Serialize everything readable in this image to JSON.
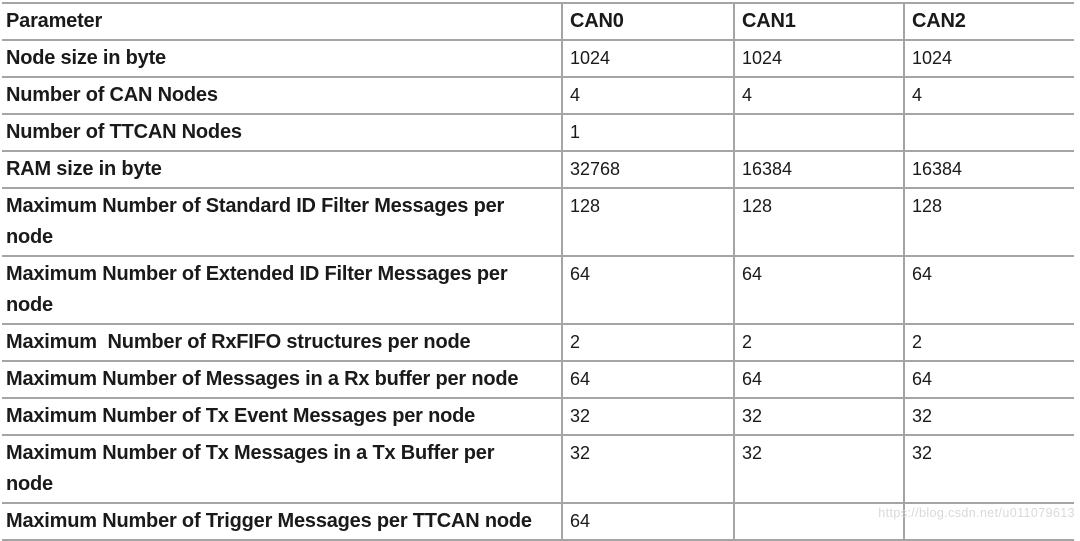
{
  "colors": {
    "grid_line": "#a5a5a5",
    "text": "#1a1a1a",
    "watermark_text": "#d9d9d9",
    "background": "#ffffff"
  },
  "table": {
    "columns": [
      "Parameter",
      "CAN0",
      "CAN1",
      "CAN2"
    ],
    "rows": [
      {
        "label": "Node size in byte",
        "values": [
          "1024",
          "1024",
          "1024"
        ]
      },
      {
        "label": "Number of CAN Nodes",
        "values": [
          "4",
          "4",
          "4"
        ]
      },
      {
        "label": "Number of TTCAN Nodes",
        "values": [
          "1",
          "",
          ""
        ]
      },
      {
        "label": "RAM size in byte",
        "values": [
          "32768",
          "16384",
          "16384"
        ]
      },
      {
        "label": "Maximum Number of Standard ID Filter Messages per\nnode",
        "values": [
          "128",
          "128",
          "128"
        ]
      },
      {
        "label": "Maximum Number of Extended ID Filter Messages per\nnode",
        "values": [
          "64",
          "64",
          "64"
        ]
      },
      {
        "label": "Maximum  Number of RxFIFO structures per node",
        "values": [
          "2",
          "2",
          "2"
        ]
      },
      {
        "label": "Maximum Number of Messages in a Rx buffer per node",
        "values": [
          "64",
          "64",
          "64"
        ]
      },
      {
        "label": "Maximum Number of Tx Event Messages per node",
        "values": [
          "32",
          "32",
          "32"
        ]
      },
      {
        "label": "Maximum Number of Tx Messages in a Tx Buffer per\nnode",
        "values": [
          "32",
          "32",
          "32"
        ]
      },
      {
        "label": "Maximum Number of Trigger Messages per TTCAN node",
        "values": [
          "64",
          "",
          ""
        ]
      }
    ]
  },
  "watermark": "https://blog.csdn.net/u011079613"
}
